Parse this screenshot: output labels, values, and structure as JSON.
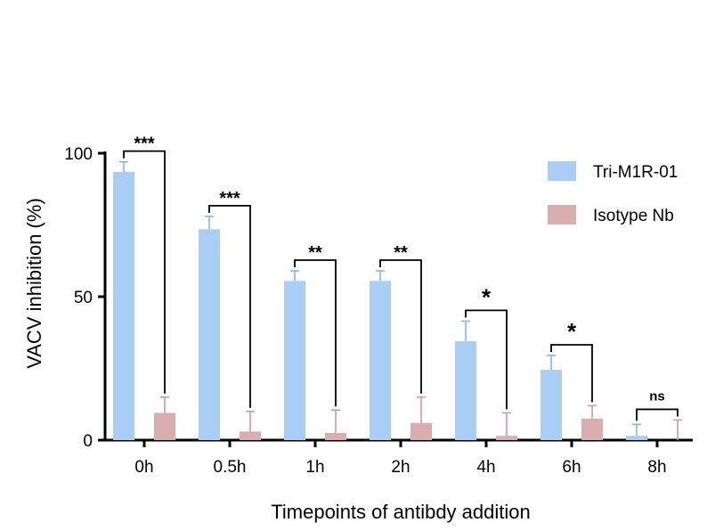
{
  "chart_data": {
    "type": "bar",
    "title": "",
    "xlabel": "Timepoints of antibdy addition",
    "ylabel": "VACV inhibition (%)",
    "ylim": [
      0,
      100
    ],
    "yticks": [
      "0",
      "50",
      "100"
    ],
    "categories": [
      "0h",
      "0.5h",
      "1h",
      "2h",
      "4h",
      "6h",
      "8h"
    ],
    "series": [
      {
        "name": "Tri-M1R-01",
        "color": "#a9cdf4",
        "values": [
          93.5,
          73.5,
          55.5,
          55.5,
          34.5,
          24.5,
          1.5
        ],
        "errors": [
          3.5,
          4.5,
          3.5,
          3.5,
          7.0,
          5.0,
          4.0
        ]
      },
      {
        "name": "Isotype Nb",
        "color": "#d8aeae",
        "values": [
          9.5,
          3.0,
          2.5,
          6.0,
          1.5,
          7.5,
          0
        ],
        "errors": [
          5.5,
          7.0,
          8.0,
          9.0,
          8.0,
          4.5,
          7.0
        ]
      }
    ],
    "significance": [
      "***",
      "***",
      "**",
      "**",
      "*",
      "*",
      "ns"
    ],
    "legend_position": "right"
  }
}
